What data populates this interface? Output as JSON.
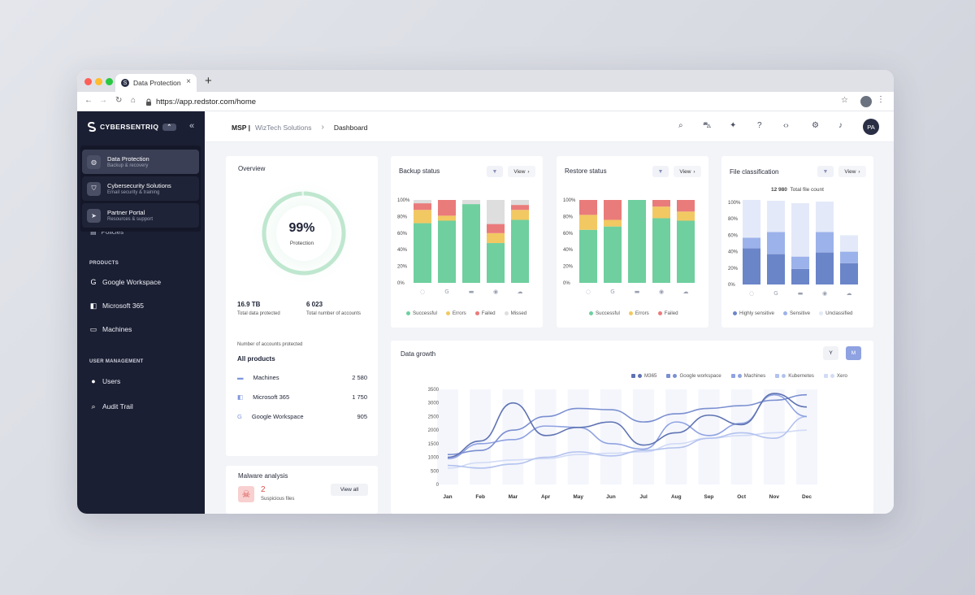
{
  "browser": {
    "tab_title": "Data Protection",
    "url": "https://app.redstor.com/home",
    "tab_close": "×",
    "new_tab": "+"
  },
  "sidebar": {
    "brand": "CYBERSENTRIQ",
    "brand_chip": "⌃",
    "menu": [
      {
        "title": "Data Protection",
        "subtitle": "Backup & recovery",
        "active": true,
        "icon": "shield-icon"
      },
      {
        "title": "Cybersecurity Solutions",
        "subtitle": "Email security & training",
        "active": false,
        "icon": "lock-shield-icon"
      },
      {
        "title": "Partner Portal",
        "subtitle": "Resources & support",
        "active": false,
        "icon": "send-icon"
      }
    ],
    "policies_label": "Policies",
    "products_heading": "PRODUCTS",
    "products": [
      {
        "label": "Google Workspace",
        "icon": "google-icon"
      },
      {
        "label": "Microsoft 365",
        "icon": "microsoft-icon"
      },
      {
        "label": "Machines",
        "icon": "monitor-icon"
      }
    ],
    "user_mgmt_heading": "USER MANAGEMENT",
    "user_mgmt": [
      {
        "label": "Users",
        "icon": "user-icon"
      },
      {
        "label": "Audit Trail",
        "icon": "audit-icon"
      }
    ]
  },
  "header": {
    "breadcrumb_msp": "MSP |",
    "breadcrumb_org": "WizTech Solutions",
    "breadcrumb_page": "Dashboard",
    "avatar_initials": "PA"
  },
  "overview": {
    "title": "Overview",
    "protection_pct": 99,
    "protection_value": "99%",
    "protection_label": "Protection",
    "total_data": "16.9 TB",
    "total_data_label": "Total data protected",
    "total_accounts": "6 023",
    "total_accounts_label": "Total number of accounts",
    "accounts_heading": "Number of accounts protected",
    "all_products": "All products",
    "products": [
      {
        "name": "Machines",
        "count": "2 580",
        "icon": "monitor-icon"
      },
      {
        "name": "Microsoft 365",
        "count": "1 750",
        "icon": "microsoft-icon"
      },
      {
        "name": "Google Workspace",
        "count": "905",
        "icon": "google-icon"
      }
    ]
  },
  "malware": {
    "title": "Malware analysis",
    "count": "2",
    "label": "Suspicious files",
    "button": "View all"
  },
  "view_label": "View",
  "data_growth": {
    "title": "Data growth",
    "toggle_y": "Y",
    "toggle_m": "M"
  },
  "colors": {
    "successful": "#6fcf9f",
    "errors": "#f2c862",
    "failed": "#ea7b7b",
    "missed": "#dedede",
    "highly_sensitive": "#6b85c9",
    "sensitive": "#9cb2ea",
    "unclassified": "#e3e9f8"
  },
  "chart_data": [
    {
      "type": "bar",
      "title": "Backup status",
      "stacked": true,
      "categories": [
        "",
        "",
        "",
        "",
        ""
      ],
      "category_icons": [
        "spinner-icon",
        "google-icon",
        "monitor-icon",
        "globe-icon",
        "cloud-icon"
      ],
      "y_ticks": [
        "100%",
        "80%",
        "60%",
        "40%",
        "20%",
        "0%"
      ],
      "ylim": [
        0,
        100
      ],
      "series": [
        {
          "name": "Successful",
          "values": [
            72,
            75,
            95,
            48,
            76
          ]
        },
        {
          "name": "Errors",
          "values": [
            16,
            6,
            0,
            12,
            12
          ]
        },
        {
          "name": "Failed",
          "values": [
            8,
            19,
            0,
            11,
            6
          ]
        },
        {
          "name": "Missed",
          "values": [
            4,
            0,
            5,
            29,
            6
          ]
        }
      ],
      "legend": "bottom"
    },
    {
      "type": "bar",
      "title": "Restore status",
      "stacked": true,
      "categories": [
        "",
        "",
        "",
        "",
        ""
      ],
      "category_icons": [
        "spinner-icon",
        "google-icon",
        "monitor-icon",
        "globe-icon",
        "cloud-icon"
      ],
      "y_ticks": [
        "100%",
        "80%",
        "60%",
        "40%",
        "20%",
        "0%"
      ],
      "ylim": [
        0,
        100
      ],
      "series": [
        {
          "name": "Successful",
          "values": [
            64,
            68,
            100,
            78,
            75
          ]
        },
        {
          "name": "Errors",
          "values": [
            18,
            8,
            0,
            14,
            11
          ]
        },
        {
          "name": "Failed",
          "values": [
            18,
            24,
            0,
            8,
            14
          ]
        }
      ],
      "legend": "bottom"
    },
    {
      "type": "bar",
      "title": "File classification",
      "subtitle_value": "12 980",
      "subtitle_label": "Total file count",
      "stacked": true,
      "categories": [
        "",
        "",
        "",
        "",
        ""
      ],
      "category_icons": [
        "spinner-icon",
        "google-icon",
        "monitor-icon",
        "globe-icon",
        "cloud-icon"
      ],
      "y_ticks": [
        "100%",
        "80%",
        "60%",
        "40%",
        "20%",
        "0%"
      ],
      "ylim": [
        0,
        100
      ],
      "series": [
        {
          "name": "Highly sensitive",
          "values": [
            44,
            37,
            19,
            39,
            26
          ]
        },
        {
          "name": "Sensitive",
          "values": [
            13,
            27,
            15,
            25,
            14
          ]
        },
        {
          "name": "Unclassified",
          "values": [
            46,
            38,
            65,
            37,
            20
          ]
        }
      ],
      "legend": "bottom"
    },
    {
      "type": "line",
      "title": "Data growth",
      "x": [
        "Jan",
        "Feb",
        "Mar",
        "Apr",
        "May",
        "Jun",
        "Jul",
        "Aug",
        "Sep",
        "Oct",
        "Nov",
        "Dec"
      ],
      "y_ticks": [
        "3500",
        "3000",
        "2500",
        "2000",
        "1500",
        "1000",
        "500",
        "0"
      ],
      "ylim": [
        0,
        3500
      ],
      "series": [
        {
          "name": "M365",
          "color": "#5f73b2",
          "values": [
            1000,
            1600,
            3000,
            1800,
            2100,
            2300,
            1450,
            1900,
            2550,
            2200,
            3350,
            2850
          ]
        },
        {
          "name": "Google workspace",
          "color": "#7b8fd0",
          "values": [
            1100,
            1250,
            2000,
            2500,
            2800,
            2750,
            2300,
            2600,
            2800,
            2900,
            3100,
            3300
          ]
        },
        {
          "name": "Machines",
          "color": "#8fa2e1",
          "values": [
            950,
            1500,
            1650,
            2150,
            2100,
            1500,
            1300,
            2300,
            1800,
            2250,
            3300,
            2500
          ]
        },
        {
          "name": "Kubernetes",
          "color": "#b3c2ee",
          "values": [
            700,
            600,
            750,
            1000,
            1200,
            1050,
            1250,
            1350,
            1700,
            1900,
            1700,
            2500
          ]
        },
        {
          "name": "Xero",
          "color": "#d2dbf6",
          "values": [
            600,
            800,
            900,
            950,
            1100,
            1150,
            1200,
            1500,
            1700,
            1800,
            1900,
            2000
          ]
        }
      ],
      "legend": "top-right"
    }
  ]
}
